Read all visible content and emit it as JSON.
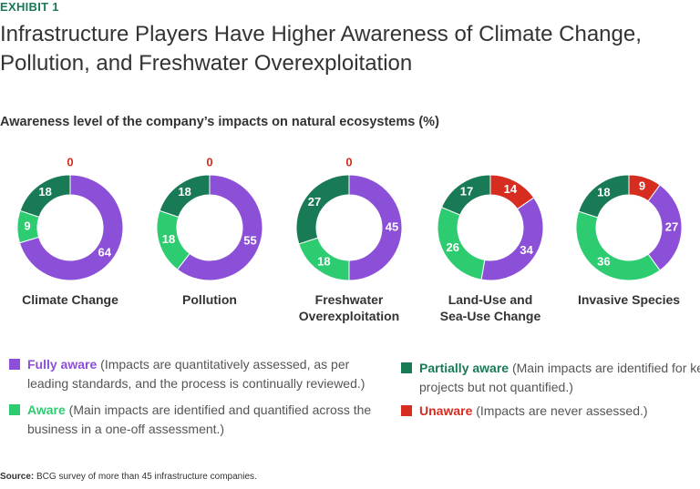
{
  "exhibit": "EXHIBIT 1",
  "title": "Infrastructure Players Have Higher Awareness of Climate Change, Pollution, and Freshwater Overexploitation",
  "subtitle": "Awareness level of the company’s impacts on natural ecosystems (%)",
  "legend": [
    {
      "name": "Fully aware",
      "description": "(Impacts are quantitatively assessed, as per leading standards, and the process is continually reviewed.)",
      "color": "#8b4fd8"
    },
    {
      "name": "Aware",
      "description": "(Main impacts are identified and quantified across the business in a one-off assessment.)",
      "color": "#2ecc71"
    },
    {
      "name": "Partially aware",
      "description": "(Main impacts are identified for key projects but not quantified.)",
      "color": "#197a56"
    },
    {
      "name": "Unaware",
      "description": "(Impacts are never assessed.)",
      "color": "#d72d20"
    }
  ],
  "chart_data": [
    {
      "type": "donut",
      "title": "Climate Change",
      "values": [
        64,
        9,
        18,
        0
      ]
    },
    {
      "type": "donut",
      "title": "Pollution",
      "values": [
        55,
        18,
        18,
        0
      ]
    },
    {
      "type": "donut",
      "title": "Freshwater Overexploitation",
      "values": [
        45,
        18,
        27,
        0
      ]
    },
    {
      "type": "donut",
      "title": "Land-Use and Sea-Use Change",
      "values": [
        34,
        26,
        17,
        14
      ]
    },
    {
      "type": "donut",
      "title": "Invasive Species",
      "values": [
        27,
        36,
        18,
        9
      ]
    }
  ],
  "source": {
    "label": "Source:",
    "text": "BCG survey of more than 45 infrastructure companies."
  }
}
